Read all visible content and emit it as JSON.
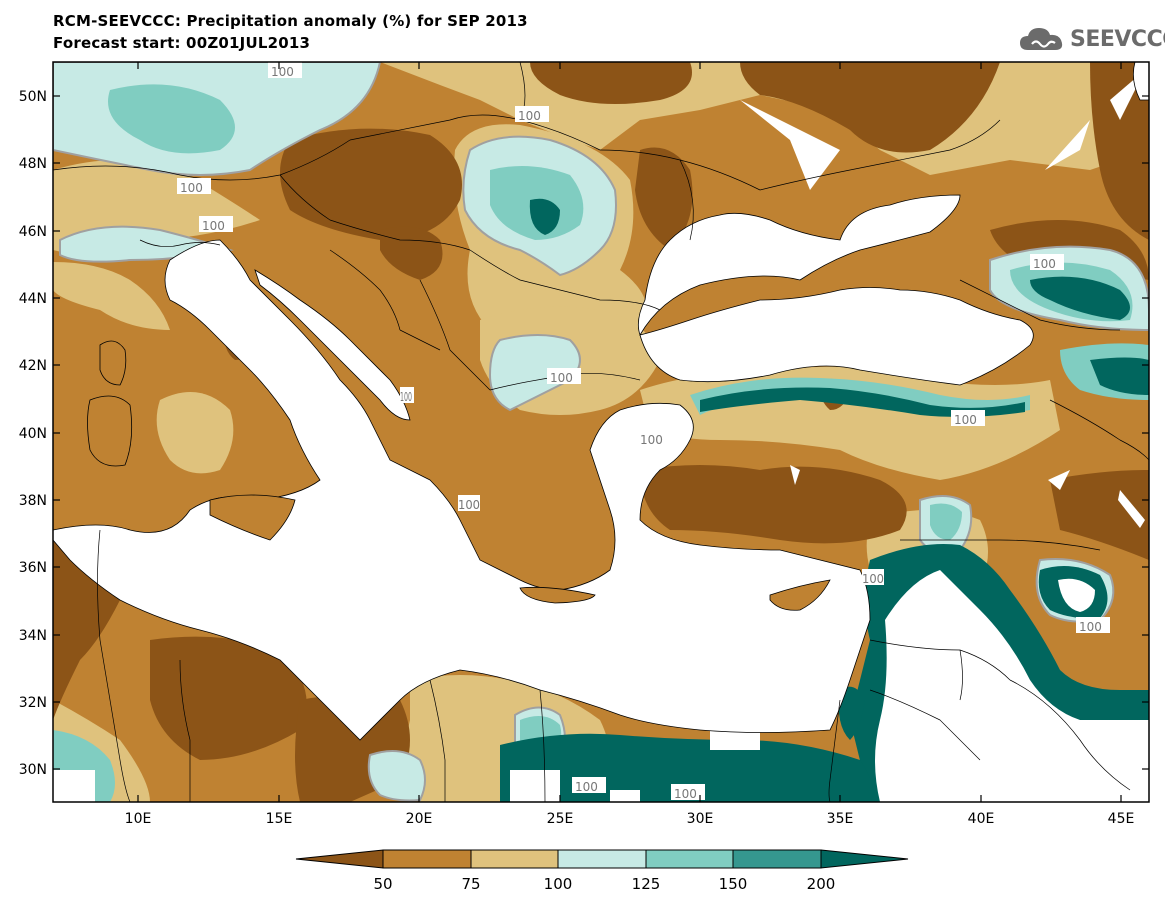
{
  "header": {
    "title_line1": "RCM-SEEVCCC: Precipitation anomaly (%) for SEP 2013",
    "title_line2": "Forecast start: 00Z01JUL2013"
  },
  "logo": {
    "text": "SEEVCCC",
    "icon": "cloud-logo-icon"
  },
  "colors": {
    "sea": "#ffffff",
    "lt50": "#8c5417",
    "b50_75": "#bf8232",
    "b75_100": "#dfc27d",
    "b100_125": "#c7eae5",
    "b125_150": "#80cdc1",
    "b150_200": "#35978f",
    "gt200": "#01665e",
    "contour100": "#a0a0a0"
  },
  "map": {
    "lat_labels": [
      "50N",
      "48N",
      "46N",
      "44N",
      "42N",
      "40N",
      "38N",
      "36N",
      "34N",
      "32N",
      "30N"
    ],
    "lon_labels": [
      "10E",
      "15E",
      "20E",
      "25E",
      "30E",
      "35E",
      "40E",
      "45E"
    ],
    "contour_labels": [
      "100",
      "100",
      "100",
      "100",
      "100",
      "100",
      "100",
      "100",
      "100",
      "100",
      "100",
      "100",
      "100",
      "100"
    ]
  },
  "colorbar": {
    "labels": [
      "50",
      "75",
      "100",
      "125",
      "150",
      "200"
    ]
  }
}
